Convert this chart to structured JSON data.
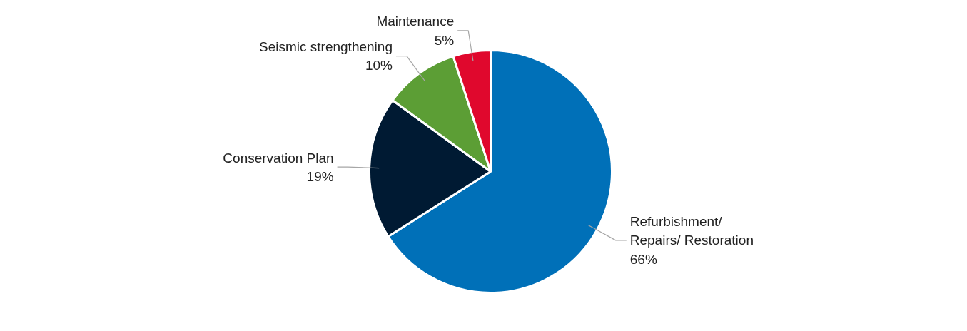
{
  "chart_data": {
    "type": "pie",
    "categories": [
      "Refurbishment/ Repairs/ Restoration",
      "Conservation Plan",
      "Seismic strengthening",
      "Maintenance"
    ],
    "values": [
      66,
      19,
      10,
      5
    ],
    "value_labels": [
      "66%",
      "19%",
      "10%",
      "5%"
    ],
    "colors": [
      "#0070b8",
      "#001a33",
      "#5c9e35",
      "#e0082d"
    ]
  }
}
